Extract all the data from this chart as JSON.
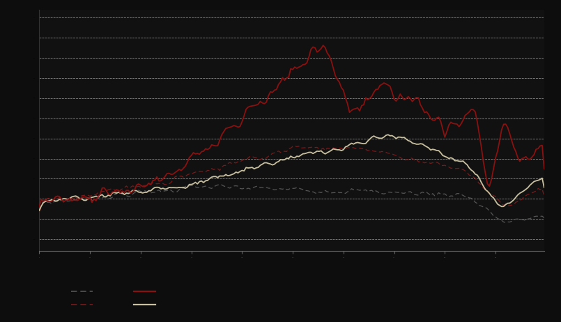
{
  "background_color": "#0d0d0d",
  "plot_bg_color": "#111111",
  "outer_bg_color": "#0d0d0d",
  "grid_color": "#ffffff",
  "line1_color": "#555555",
  "line2_color": "#7a1a1a",
  "line3_color": "#8b1010",
  "line4_color": "#c8c0a0",
  "title": "",
  "n_points": 250,
  "ylim": [
    -0.08,
    0.52
  ],
  "xlim": [
    0,
    249
  ]
}
